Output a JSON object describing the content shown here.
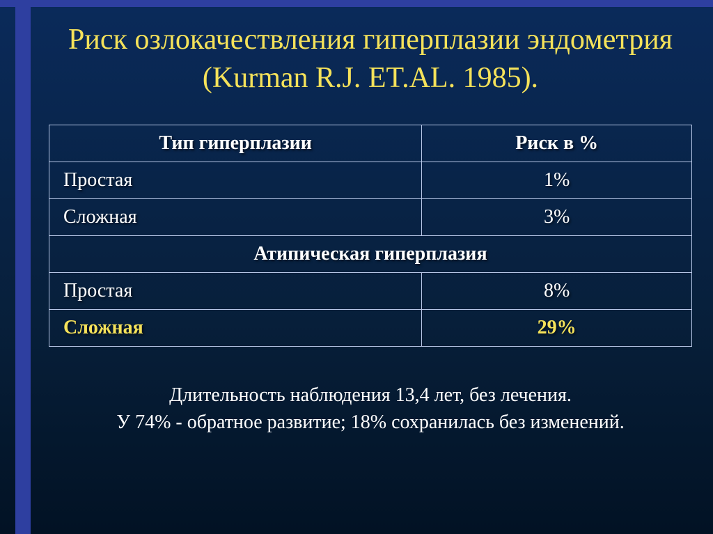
{
  "title": "Риск озлокачествления гиперплазии эндометрия (Kurman R.J. ET.AL. 1985).",
  "table": {
    "header": {
      "col1": "Тип    гиперплазии",
      "col2": "Риск  в %"
    },
    "rows": [
      {
        "col1": "Простая",
        "col2": "1%",
        "highlight": false
      },
      {
        "col1": "Сложная",
        "col2": "3%",
        "highlight": false
      }
    ],
    "subheader": "Атипическая гиперплазия",
    "rows2": [
      {
        "col1": "Простая",
        "col2": "8%",
        "highlight": false
      },
      {
        "col1": "Сложная",
        "col2": "29%",
        "highlight": true
      }
    ]
  },
  "footer": {
    "line1": "Длительность наблюдения  13,4 лет, без лечения.",
    "line2": "У 74%  - обратное развитие;  18% сохранилась без изменений."
  },
  "colors": {
    "accent_yellow": "#f5e25a",
    "border": "#b8c8e8",
    "stripe": "#2e3fa0",
    "bg_top": "#0a2a5a",
    "bg_bottom": "#021224",
    "text": "#ffffff"
  }
}
